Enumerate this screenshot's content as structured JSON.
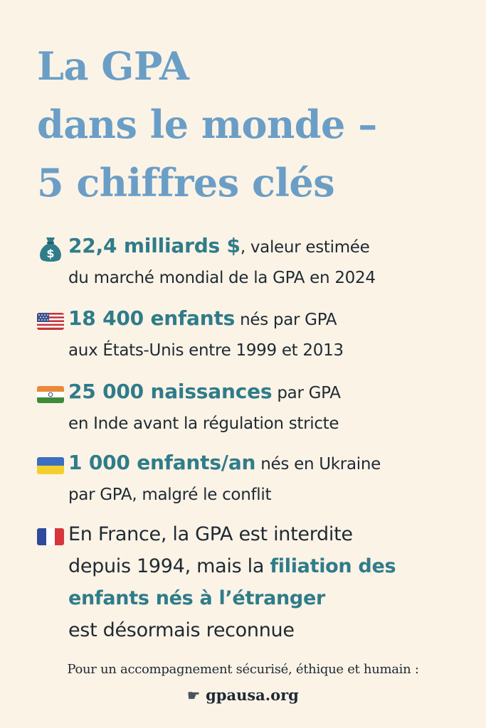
{
  "title": {
    "line1": "La GPA",
    "line2": "dans le monde –",
    "line3": "5 chiffres clés"
  },
  "stats": [
    {
      "icon": "money-bag-icon",
      "highlight": "22,4 milliards $",
      "text1": ", valeur estimée",
      "text2": "du marché mondial de la GPA en 2024"
    },
    {
      "icon": "us-flag-icon",
      "highlight": "18 400 enfants",
      "text1": " nés par GPA",
      "text2": "aux États-Unis entre 1999 et 2013"
    },
    {
      "icon": "india-flag-icon",
      "highlight": "25 000 naissances",
      "text1": " par GPA",
      "text2": "en Inde avant la régulation stricte"
    },
    {
      "icon": "ukraine-flag-icon",
      "highlight": "1 000 enfants/an",
      "text1": " nés en Ukraine",
      "text2": "par GPA, malgré le conflit"
    },
    {
      "icon": "france-flag-icon",
      "line1": "En France, la GPA est interdite",
      "line2a": "depuis 1994, mais la ",
      "line2b": "filiation des",
      "line3": "enfants nés à l’étranger",
      "line4": "est désormais reconnue"
    }
  ],
  "footer": {
    "cta": "Pour un accompagnement sécurisé, éthique et humain :",
    "icon": "pointing-hand-icon",
    "site": "gpausa.org"
  },
  "colors": {
    "background": "#fbf3e6",
    "title": "#6a9ec6",
    "highlight": "#2f7c8a",
    "text": "#1f2a33"
  }
}
